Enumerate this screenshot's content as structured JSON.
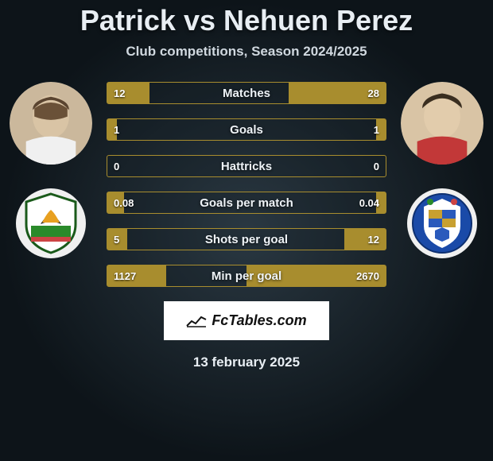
{
  "title_a": "Patrick",
  "title_vs": "vs",
  "title_b": "Nehuen Perez",
  "subtitle": "Club competitions, Season 2024/2025",
  "brand": "FcTables.com",
  "date": "13 february 2025",
  "colors": {
    "bar_fill": "#a88d2e",
    "bar_border": "#a88d2e",
    "bg_center": "#2a3842",
    "bg_edge": "#0d1419",
    "text": "#e8eef3"
  },
  "players": {
    "left": {
      "name": "Patrick",
      "avatar_bg": "#4a5560",
      "crest_bg": "#f0f0f0"
    },
    "right": {
      "name": "Nehuen Perez",
      "avatar_bg": "#4a5560",
      "crest_bg": "#f0f0f0"
    }
  },
  "rows": [
    {
      "label": "Matches",
      "left": "12",
      "right": "28",
      "lp": 30,
      "rp": 70
    },
    {
      "label": "Goals",
      "left": "1",
      "right": "1",
      "lp": 7,
      "rp": 7
    },
    {
      "label": "Hattricks",
      "left": "0",
      "right": "0",
      "lp": 0,
      "rp": 0
    },
    {
      "label": "Goals per match",
      "left": "0.08",
      "right": "0.04",
      "lp": 12,
      "rp": 7
    },
    {
      "label": "Shots per goal",
      "left": "5",
      "right": "12",
      "lp": 14,
      "rp": 30
    },
    {
      "label": "Min per goal",
      "left": "1127",
      "right": "2670",
      "lp": 42,
      "rp": 100
    }
  ]
}
